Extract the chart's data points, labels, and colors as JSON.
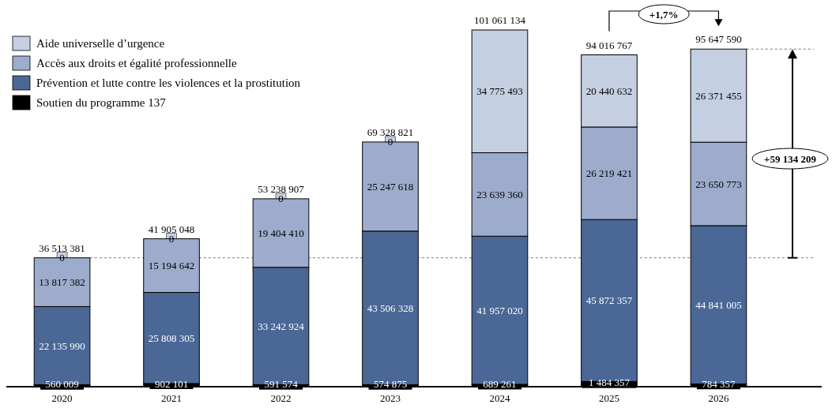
{
  "chart_data": {
    "type": "bar",
    "stacked": true,
    "legend": "top left",
    "categories": [
      "2020",
      "2021",
      "2022",
      "2023",
      "2024",
      "2025",
      "2026"
    ],
    "series": [
      {
        "name": "Soutien du programme 137",
        "color": "#000000",
        "values": [
          560009,
          902101,
          591574,
          574875,
          689261,
          1484357,
          784357
        ],
        "value_labels": [
          "560 009",
          "902 101",
          "591 574",
          "574 875",
          "689 261",
          "1 484 357",
          "784 357"
        ]
      },
      {
        "name": "Prévention et lutte contre les violences et la prostitution",
        "color": "#4a6796",
        "values": [
          22135990,
          25808305,
          33242924,
          43506328,
          41957020,
          45872357,
          44841005
        ],
        "value_labels": [
          "22 135 990",
          "25 808 305",
          "33 242 924",
          "43 506 328",
          "41 957 020",
          "45 872 357",
          "44 841 005"
        ]
      },
      {
        "name": "Accès aux droits et égalité professionnelle",
        "color": "#9daccc",
        "values": [
          13817382,
          15194642,
          19404410,
          25247618,
          23639360,
          26219421,
          23650773
        ],
        "value_labels": [
          "13 817 382",
          "15 194 642",
          "19 404 410",
          "25 247 618",
          "23 639 360",
          "26 219 421",
          "23 650 773"
        ]
      },
      {
        "name": "Aide universelle d’urgence",
        "color": "#c5cfe2",
        "values": [
          0,
          0,
          0,
          0,
          34775493,
          20440632,
          26371455
        ],
        "value_labels": [
          "0",
          "0",
          "0",
          "0",
          "34 775 493",
          "20 440 632",
          "26 371 455"
        ]
      }
    ],
    "totals": [
      "36 513 381",
      "41 905 048",
      "53 238 907",
      "69 328 821",
      "101 061 134",
      "94 016 767",
      "95 647 590"
    ],
    "ref_lines": [
      {
        "axis": "y",
        "value": 36513381,
        "line_style": "dashed"
      },
      {
        "axis": "y",
        "value": 95647590,
        "line_style": "dashed"
      }
    ],
    "annotations": [
      "+1,7%",
      "+59 134 209"
    ]
  }
}
